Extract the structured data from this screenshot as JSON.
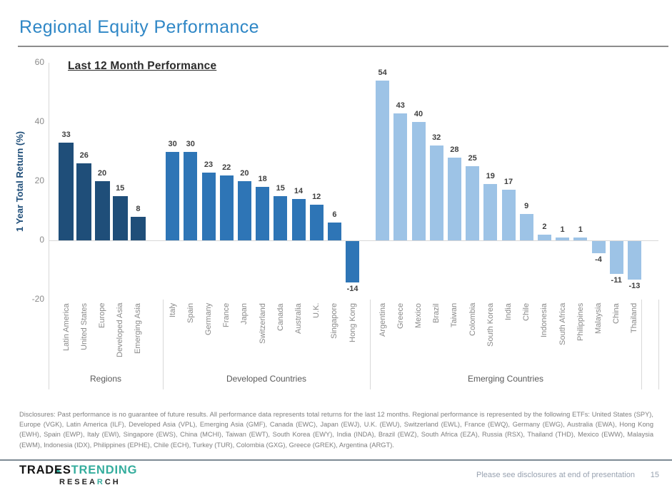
{
  "page": {
    "title": "Regional Equity Performance",
    "accent_color": "#2F87C6"
  },
  "chart_data": {
    "type": "bar",
    "title": "Last 12 Month Performance",
    "xlabel": "",
    "ylabel": "1 Year Total Return (%)",
    "ylim": [
      -20,
      60
    ],
    "yticks": [
      60,
      40,
      20,
      0,
      -20
    ],
    "grid": "zero-line-only",
    "legend": "none",
    "value_label_color": "#404040",
    "axis_text_color": "#8A8A8A",
    "group_label_color": "#595959",
    "gridline_color": "#D8D8D8",
    "groups": [
      {
        "label": "Regions",
        "color": "#1F4E79",
        "categories": [
          "Latin America",
          "United States",
          "Europe",
          "Developed Asia",
          "Emerging Asia"
        ],
        "values": [
          33,
          26,
          20,
          15,
          8
        ]
      },
      {
        "label": "Developed Countries",
        "color": "#2E75B6",
        "categories": [
          "Italy",
          "Spain",
          "Germany",
          "France",
          "Japan",
          "Switzerland",
          "Canada",
          "Australia",
          "U.K.",
          "Singapore",
          "Hong Kong"
        ],
        "values": [
          30,
          30,
          23,
          22,
          20,
          18,
          15,
          14,
          12,
          6,
          -14
        ]
      },
      {
        "label": "Emerging Countries",
        "color": "#9DC3E6",
        "categories": [
          "Argentina",
          "Greece",
          "Mexico",
          "Brazil",
          "Taiwan",
          "Colombia",
          "South Korea",
          "India",
          "Chile",
          "Indonesia",
          "South Africa",
          "Philippines",
          "Malaysia",
          "China",
          "Thailand"
        ],
        "values": [
          54,
          43,
          40,
          32,
          28,
          25,
          19,
          17,
          9,
          2,
          1,
          1,
          -4,
          -11,
          -13
        ]
      }
    ]
  },
  "disclosures": {
    "text": "Disclosures: Past performance is no guarantee of future results. All performance data represents total returns for the last 12 months. Regional performance is represented by the following ETFs: United States (SPY), Europe (VGK), Latin America (ILF), Developed Asia (VPL), Emerging Asia (GMF), Canada (EWC), Japan (EWJ), U.K. (EWU), Switzerland (EWL), France (EWQ), Germany (EWG), Australia (EWA), Hong Kong (EWH), Spain (EWP), Italy (EWI), Singapore (EWS), China (MCHI), Taiwan (EWT), South Korea (EWY), India (INDA), Brazil (EWZ), South Africa (EZA), Russia (RSX), Thailand (THD), Mexico (EWW), Malaysia (EWM), Indonesia (IDX), Philippines (EPHE), Chile (ECH), Turkey (TUR), Colombia (GXG), Greece (GREK), Argentina (ARGT)."
  },
  "logo": {
    "trades": "TRADES",
    "trending": "TRENDING",
    "research_pre": "RESEA",
    "research_r": "R",
    "research_post": "CH",
    "teal": "#34AD9D"
  },
  "footer": {
    "note": "Please see disclosures at end of presentation",
    "page_number": "15"
  }
}
